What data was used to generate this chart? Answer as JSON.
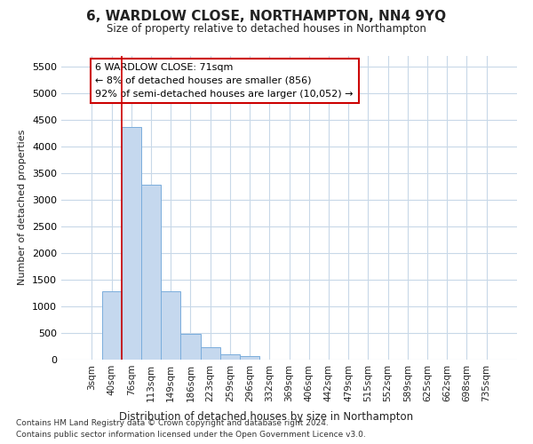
{
  "title": "6, WARDLOW CLOSE, NORTHAMPTON, NN4 9YQ",
  "subtitle": "Size of property relative to detached houses in Northampton",
  "xlabel": "Distribution of detached houses by size in Northampton",
  "ylabel": "Number of detached properties",
  "footnote1": "Contains HM Land Registry data © Crown copyright and database right 2024.",
  "footnote2": "Contains public sector information licensed under the Open Government Licence v3.0.",
  "annotation_text": "6 WARDLOW CLOSE: 71sqm\n← 8% of detached houses are smaller (856)\n92% of semi-detached houses are larger (10,052) →",
  "bar_color": "#c5d8ee",
  "bar_edge_color": "#7aaddc",
  "red_line_x": 1,
  "categories": [
    "3sqm",
    "40sqm",
    "76sqm",
    "113sqm",
    "149sqm",
    "186sqm",
    "223sqm",
    "259sqm",
    "296sqm",
    "332sqm",
    "369sqm",
    "406sqm",
    "442sqm",
    "479sqm",
    "515sqm",
    "552sqm",
    "589sqm",
    "625sqm",
    "662sqm",
    "698sqm",
    "735sqm"
  ],
  "values": [
    0,
    1280,
    4360,
    3280,
    1280,
    480,
    230,
    100,
    60,
    0,
    0,
    0,
    0,
    0,
    0,
    0,
    0,
    0,
    0,
    0,
    0
  ],
  "ylim": [
    0,
    5700
  ],
  "yticks": [
    0,
    500,
    1000,
    1500,
    2000,
    2500,
    3000,
    3500,
    4000,
    4500,
    5000,
    5500
  ],
  "bg_color": "#ffffff",
  "grid_color": "#c8d8e8",
  "red_line_color": "#cc0000",
  "annotation_box_edgecolor": "#cc0000"
}
